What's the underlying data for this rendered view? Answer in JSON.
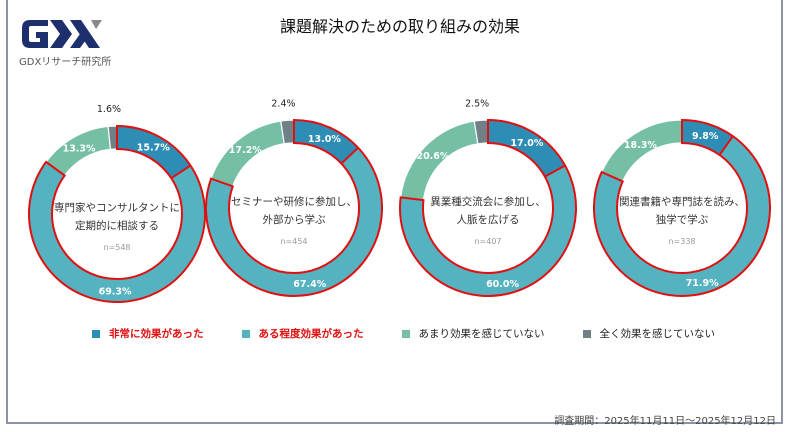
{
  "header": {
    "title": "課題解決のための取り組みの効果",
    "logo_text": "GDX",
    "logo_subtitle": "GDXリサーチ研究所"
  },
  "colors": {
    "very": "#2E8DB5",
    "some": "#55B3C1",
    "little": "#75BFA4",
    "none": "#6F8186",
    "highlight": "#E01010",
    "brand": "#1E2F6E"
  },
  "chart_data": {
    "type": "donut",
    "series_names": [
      "非常に効果があった",
      "ある程度効果があった",
      "あまり効果を感じていない",
      "全く効果を感じていない"
    ],
    "charts": [
      {
        "label": [
          "専門家やコンサルタントに",
          "定期的に相談する"
        ],
        "n": "n=548",
        "values": [
          15.7,
          69.3,
          13.3,
          1.6
        ]
      },
      {
        "label": [
          "セミナーや研修に参加し、",
          "外部から学ぶ"
        ],
        "n": "n=454",
        "values": [
          13.0,
          67.4,
          17.2,
          2.4
        ]
      },
      {
        "label": [
          "異業種交流会に参加し、",
          "人脈を広げる"
        ],
        "n": "n=407",
        "values": [
          17.0,
          60.0,
          20.6,
          2.5
        ]
      },
      {
        "label": [
          "関連書籍や専門誌を読み、",
          "独学で学ぶ"
        ],
        "n": "n=338",
        "values": [
          9.8,
          71.9,
          18.3,
          0.0
        ]
      }
    ],
    "legend_position": "bottom",
    "highlighted_series": [
      "非常に効果があった",
      "ある程度効果があった"
    ]
  },
  "legend": [
    {
      "label": "非常に効果があった",
      "color": "#2E8DB5",
      "text_color": "#E01010"
    },
    {
      "label": "ある程度効果があった",
      "color": "#55B3C1",
      "text_color": "#E01010"
    },
    {
      "label": "あまり効果を感じていない",
      "color": "#75BFA4",
      "text_color": "#222222"
    },
    {
      "label": "全く効果を感じていない",
      "color": "#6F8186",
      "text_color": "#222222"
    }
  ],
  "footer": {
    "period": "調査期間：2025年11月11日～2025年12月12日"
  }
}
